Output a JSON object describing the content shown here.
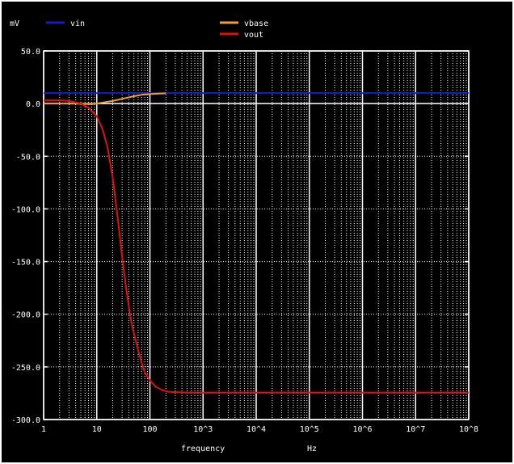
{
  "unit_label": "mV",
  "legend": [
    {
      "name": "vin",
      "color": "#1020c8"
    },
    {
      "name": "vbase",
      "color": "#f0a030"
    },
    {
      "name": "vout",
      "color": "#e01010"
    }
  ],
  "chart_data": {
    "type": "line",
    "xscale": "log",
    "xlabel": "frequency",
    "xunit": "Hz",
    "ylabel": "mV",
    "xlim": [
      1,
      100000000
    ],
    "ylim": [
      -300,
      50
    ],
    "grid": true,
    "legend_position": "top",
    "xticks": [
      {
        "value": 1,
        "label": "1"
      },
      {
        "value": 10,
        "label": "10"
      },
      {
        "value": 100,
        "label": "100"
      },
      {
        "value": 1000,
        "label": "10^3"
      },
      {
        "value": 10000,
        "label": "10^4"
      },
      {
        "value": 100000,
        "label": "10^5"
      },
      {
        "value": 1000000,
        "label": "10^6"
      },
      {
        "value": 10000000,
        "label": "10^7"
      },
      {
        "value": 100000000,
        "label": "10^8"
      }
    ],
    "yticks": [
      {
        "value": 50,
        "label": "50.0"
      },
      {
        "value": 0,
        "label": "0.0"
      },
      {
        "value": -50,
        "label": "-50.0"
      },
      {
        "value": -100,
        "label": "-100.0"
      },
      {
        "value": -150,
        "label": "-150.0"
      },
      {
        "value": -200,
        "label": "-200.0"
      },
      {
        "value": -250,
        "label": "-250.0"
      },
      {
        "value": -300,
        "label": "-300.0"
      }
    ],
    "series": [
      {
        "name": "vin",
        "color": "#1020c8",
        "x": [
          1,
          100000000
        ],
        "y": [
          10,
          10
        ]
      },
      {
        "name": "vbase",
        "color": "#f0a030",
        "x": [
          1,
          3,
          5,
          8,
          10,
          15,
          20,
          30,
          50,
          70,
          100,
          150,
          200
        ],
        "y": [
          0,
          0,
          -0.2,
          -0.6,
          0,
          1.5,
          2.5,
          4.5,
          7,
          8.3,
          9,
          9.5,
          9.7
        ]
      },
      {
        "name": "vout",
        "color": "#e01010",
        "x": [
          1,
          2,
          3,
          5,
          7,
          10,
          13,
          16,
          20,
          25,
          30,
          35,
          40,
          45,
          50,
          60,
          70,
          80,
          100,
          130,
          170,
          220,
          300,
          500,
          1000,
          10000,
          100000,
          1000000,
          10000000,
          100000000
        ],
        "y": [
          3,
          3,
          2.5,
          0,
          -4,
          -12,
          -25,
          -42,
          -70,
          -110,
          -145,
          -172,
          -192,
          -208,
          -218,
          -234,
          -246,
          -255,
          -263,
          -269,
          -272,
          -273.5,
          -274,
          -274.5,
          -274.5,
          -274.5,
          -274.5,
          -274.5,
          -274.5,
          -274.5
        ]
      }
    ]
  }
}
